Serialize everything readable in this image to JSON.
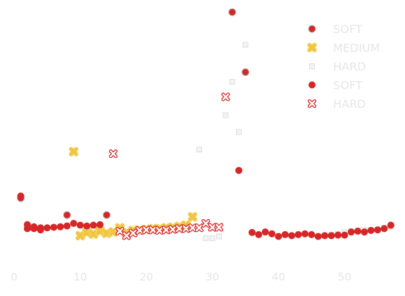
{
  "chart_data": {
    "type": "scatter",
    "title": "",
    "xlabel": "",
    "ylabel": "",
    "xlim": [
      -1.5,
      58.5
    ],
    "ylim": [
      0,
      1
    ],
    "x_ticks": [
      0,
      10,
      20,
      30,
      40,
      50
    ],
    "x_tick_labels": [
      "0",
      "10",
      "20",
      "30",
      "40",
      "50"
    ],
    "y_ticks_visible": false,
    "grid": false,
    "legend": "top-right",
    "series": [
      {
        "name": "SOFT",
        "marker": "circle-edge",
        "color": "#d62728",
        "points": [
          [
            1,
            0.262
          ],
          [
            8,
            0.197
          ],
          [
            14,
            0.197
          ],
          [
            33,
            0.975
          ],
          [
            35,
            0.745
          ]
        ]
      },
      {
        "name": "MEDIUM",
        "marker": "x-filled",
        "color": "#f0c542",
        "points": [
          [
            9,
            0.44
          ],
          [
            10,
            0.118
          ],
          [
            11,
            0.13
          ],
          [
            12,
            0.124
          ],
          [
            13,
            0.135
          ],
          [
            14,
            0.127
          ],
          [
            15,
            0.132
          ],
          [
            16,
            0.148
          ],
          [
            17,
            0.13
          ],
          [
            18,
            0.138
          ],
          [
            19,
            0.14
          ],
          [
            20,
            0.142
          ],
          [
            21,
            0.145
          ],
          [
            22,
            0.145
          ],
          [
            23,
            0.148
          ],
          [
            24,
            0.15
          ],
          [
            25,
            0.153
          ],
          [
            26,
            0.158
          ],
          [
            27,
            0.19
          ]
        ]
      },
      {
        "name": "HARD",
        "marker": "square",
        "color": "#dddddd",
        "points": [
          [
            28,
            0.448
          ],
          [
            29,
            0.108
          ],
          [
            30,
            0.108
          ],
          [
            31,
            0.115
          ],
          [
            32,
            0.58
          ],
          [
            33,
            0.708
          ],
          [
            34,
            0.515
          ],
          [
            35,
            0.85
          ],
          [
            48,
            0.122
          ],
          [
            49,
            0.125
          ],
          [
            50,
            0.132
          ],
          [
            51,
            0.135
          ],
          [
            52,
            0.138
          ],
          [
            53,
            0.14
          ],
          [
            54,
            0.14
          ],
          [
            55,
            0.142
          ],
          [
            56,
            0.148
          ],
          [
            57,
            0.152
          ]
        ]
      },
      {
        "name": "SOFT",
        "marker": "circle",
        "color": "#d62728",
        "points": [
          [
            1,
            0.27
          ],
          [
            2,
            0.16
          ],
          [
            2,
            0.145
          ],
          [
            3,
            0.145
          ],
          [
            3,
            0.152
          ],
          [
            4,
            0.148
          ],
          [
            4,
            0.14
          ],
          [
            5,
            0.148
          ],
          [
            6,
            0.15
          ],
          [
            7,
            0.152
          ],
          [
            8,
            0.155
          ],
          [
            9,
            0.165
          ],
          [
            10,
            0.158
          ],
          [
            11,
            0.155
          ],
          [
            12,
            0.158
          ],
          [
            13,
            0.16
          ],
          [
            34,
            0.368
          ],
          [
            36,
            0.13
          ],
          [
            37,
            0.122
          ],
          [
            38,
            0.132
          ],
          [
            39,
            0.125
          ],
          [
            40,
            0.115
          ],
          [
            41,
            0.122
          ],
          [
            42,
            0.118
          ],
          [
            43,
            0.122
          ],
          [
            44,
            0.125
          ],
          [
            45,
            0.122
          ],
          [
            46,
            0.115
          ],
          [
            47,
            0.118
          ],
          [
            48,
            0.118
          ],
          [
            49,
            0.12
          ],
          [
            50,
            0.12
          ],
          [
            51,
            0.132
          ],
          [
            52,
            0.135
          ],
          [
            53,
            0.132
          ],
          [
            54,
            0.138
          ],
          [
            55,
            0.14
          ],
          [
            56,
            0.145
          ],
          [
            57,
            0.158
          ]
        ]
      },
      {
        "name": "HARD",
        "marker": "x",
        "color": "#d62728",
        "points": [
          [
            15,
            0.432
          ],
          [
            16,
            0.135
          ],
          [
            17,
            0.118
          ],
          [
            18,
            0.128
          ],
          [
            19,
            0.138
          ],
          [
            20,
            0.14
          ],
          [
            21,
            0.14
          ],
          [
            22,
            0.138
          ],
          [
            23,
            0.14
          ],
          [
            24,
            0.142
          ],
          [
            25,
            0.145
          ],
          [
            26,
            0.145
          ],
          [
            27,
            0.148
          ],
          [
            28,
            0.148
          ],
          [
            29,
            0.165
          ],
          [
            30,
            0.15
          ],
          [
            31,
            0.15
          ],
          [
            32,
            0.65
          ]
        ]
      }
    ]
  }
}
